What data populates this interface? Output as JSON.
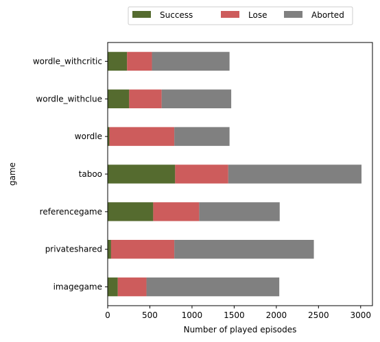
{
  "chart_data": {
    "type": "bar",
    "orientation": "horizontal",
    "stacked": true,
    "categories": [
      "wordle_withcritic",
      "wordle_withclue",
      "wordle",
      "taboo",
      "referencegame",
      "privateshared",
      "imagegame"
    ],
    "series": [
      {
        "name": "Success",
        "color": "#556b2f",
        "values": [
          230,
          255,
          20,
          800,
          540,
          40,
          120
        ]
      },
      {
        "name": "Lose",
        "color": "#cd5c5c",
        "values": [
          295,
          385,
          770,
          630,
          545,
          750,
          340
        ]
      },
      {
        "name": "Aborted",
        "color": "#808080",
        "values": [
          920,
          825,
          655,
          1580,
          955,
          1655,
          1575
        ]
      }
    ],
    "xlabel": "Number of played episodes",
    "ylabel": "game",
    "xlim": [
      0,
      3140
    ],
    "xticks": [
      0,
      500,
      1000,
      1500,
      2000,
      2500,
      3000
    ],
    "grid": false,
    "legend_position": "top-center, outside plot"
  }
}
